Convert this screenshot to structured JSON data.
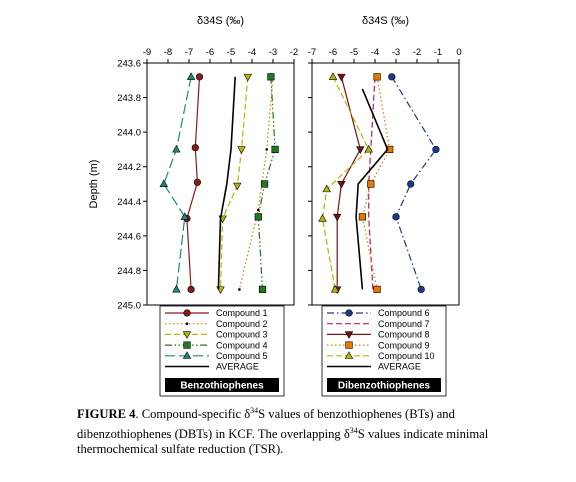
{
  "chart_data": [
    {
      "type": "line",
      "xlabel": "δ34S (‰)",
      "ylabel": "Depth (m)",
      "xlim": [
        -9,
        -2
      ],
      "ylim": [
        243.6,
        245.0
      ],
      "y_reversed": true,
      "x_axis_position": "top",
      "xticks": [
        -9,
        -8,
        -7,
        -6,
        -5,
        -4,
        -3,
        -2
      ],
      "yticks": [
        243.6,
        243.8,
        244.0,
        244.2,
        244.4,
        244.6,
        244.8,
        245.0
      ],
      "legend_label": "Benzothiophenes",
      "legend_placement": "bottom",
      "series": [
        {
          "name": "Compound 1",
          "color": "#8b1a1a",
          "marker": "circle",
          "dash": "solid",
          "x": [
            -6.5,
            -6.7,
            -6.6,
            -7.1,
            -6.9
          ],
          "y": [
            243.68,
            244.09,
            244.29,
            244.5,
            244.91
          ]
        },
        {
          "name": "Compound 2",
          "color": "#e07b00",
          "marker": "dot",
          "dash": "dotted",
          "x": [
            -3.0,
            -3.3,
            -3.7,
            -4.6
          ],
          "y": [
            243.68,
            244.1,
            244.45,
            244.91
          ]
        },
        {
          "name": "Compound 3",
          "color": "#b7b700",
          "marker": "triangle-down",
          "dash": "dash",
          "x": [
            -4.2,
            -4.5,
            -4.7,
            -5.4,
            -5.5
          ],
          "y": [
            243.68,
            244.1,
            244.31,
            244.5,
            244.91
          ]
        },
        {
          "name": "Compound 4",
          "color": "#1f7a1f",
          "marker": "square",
          "dash": "dashdotdot",
          "x": [
            -3.1,
            -2.9,
            -3.4,
            -3.7,
            -3.5
          ],
          "y": [
            243.68,
            244.1,
            244.3,
            244.49,
            244.91
          ]
        },
        {
          "name": "Compound 5",
          "color": "#1a8a7a",
          "marker": "triangle-up",
          "dash": "longdash",
          "x": [
            -6.9,
            -7.6,
            -8.2,
            -7.2,
            -7.6
          ],
          "y": [
            243.68,
            244.1,
            244.3,
            244.49,
            244.91
          ]
        },
        {
          "name": "AVERAGE",
          "color": "#000000",
          "marker": "none",
          "dash": "solid",
          "x": [
            -4.8,
            -5.0,
            -5.2,
            -5.5,
            -5.6
          ],
          "y": [
            243.68,
            244.1,
            244.3,
            244.5,
            244.91
          ]
        }
      ]
    },
    {
      "type": "line",
      "xlabel": "δ34S (‰)",
      "ylabel": "",
      "xlim": [
        -7,
        0
      ],
      "ylim": [
        243.6,
        245.0
      ],
      "y_reversed": true,
      "x_axis_position": "top",
      "xticks": [
        -7,
        -6,
        -5,
        -4,
        -3,
        -2,
        -1,
        0
      ],
      "yticks": [],
      "legend_label": "Dibenzothiophenes",
      "legend_placement": "bottom",
      "series": [
        {
          "name": "Compound 6",
          "color": "#1f3a8a",
          "marker": "circle",
          "dash": "dashdot",
          "x": [
            -3.2,
            -1.1,
            -2.3,
            -3.0,
            -1.8
          ],
          "y": [
            243.68,
            244.1,
            244.3,
            244.49,
            244.91
          ]
        },
        {
          "name": "Compound 7",
          "color": "#c2185b",
          "marker": "none",
          "dash": "dash",
          "x": [
            -4.0,
            -4.2,
            -4.3,
            -4.3,
            -4.1
          ],
          "y": [
            243.68,
            244.1,
            244.3,
            244.49,
            244.91
          ]
        },
        {
          "name": "Compound 8",
          "color": "#7a1414",
          "marker": "triangle-down",
          "dash": "solid",
          "x": [
            -5.6,
            -4.7,
            -5.6,
            -5.8,
            -5.8
          ],
          "y": [
            243.68,
            244.1,
            244.3,
            244.49,
            244.91
          ]
        },
        {
          "name": "Compound 9",
          "color": "#e07b00",
          "marker": "square",
          "dash": "dotted",
          "x": [
            -3.9,
            -3.3,
            -4.2,
            -4.6,
            -3.9
          ],
          "y": [
            243.68,
            244.1,
            244.3,
            244.49,
            244.91
          ]
        },
        {
          "name": "Compound 10",
          "color": "#b7b700",
          "marker": "triangle-up",
          "dash": "dash",
          "x": [
            -6.0,
            -4.3,
            -6.3,
            -6.5,
            -5.9
          ],
          "y": [
            243.68,
            244.1,
            244.33,
            244.5,
            244.91
          ]
        },
        {
          "name": "AVERAGE",
          "color": "#000000",
          "marker": "none",
          "dash": "solid",
          "x": [
            -4.6,
            -3.4,
            -4.8,
            -4.9,
            -4.6
          ],
          "y": [
            243.75,
            244.1,
            244.3,
            244.49,
            244.91
          ]
        }
      ]
    }
  ],
  "caption": {
    "label": "FIGURE  4",
    "parts": [
      ". Compound-specific δ",
      "34",
      "S values of benzothiophenes (BTs) and dibenzothiophenes (DBTs) in KCF. The overlapping δ",
      "34",
      "S values indicate minimal thermochemical sulfate reduction (TSR)."
    ]
  }
}
